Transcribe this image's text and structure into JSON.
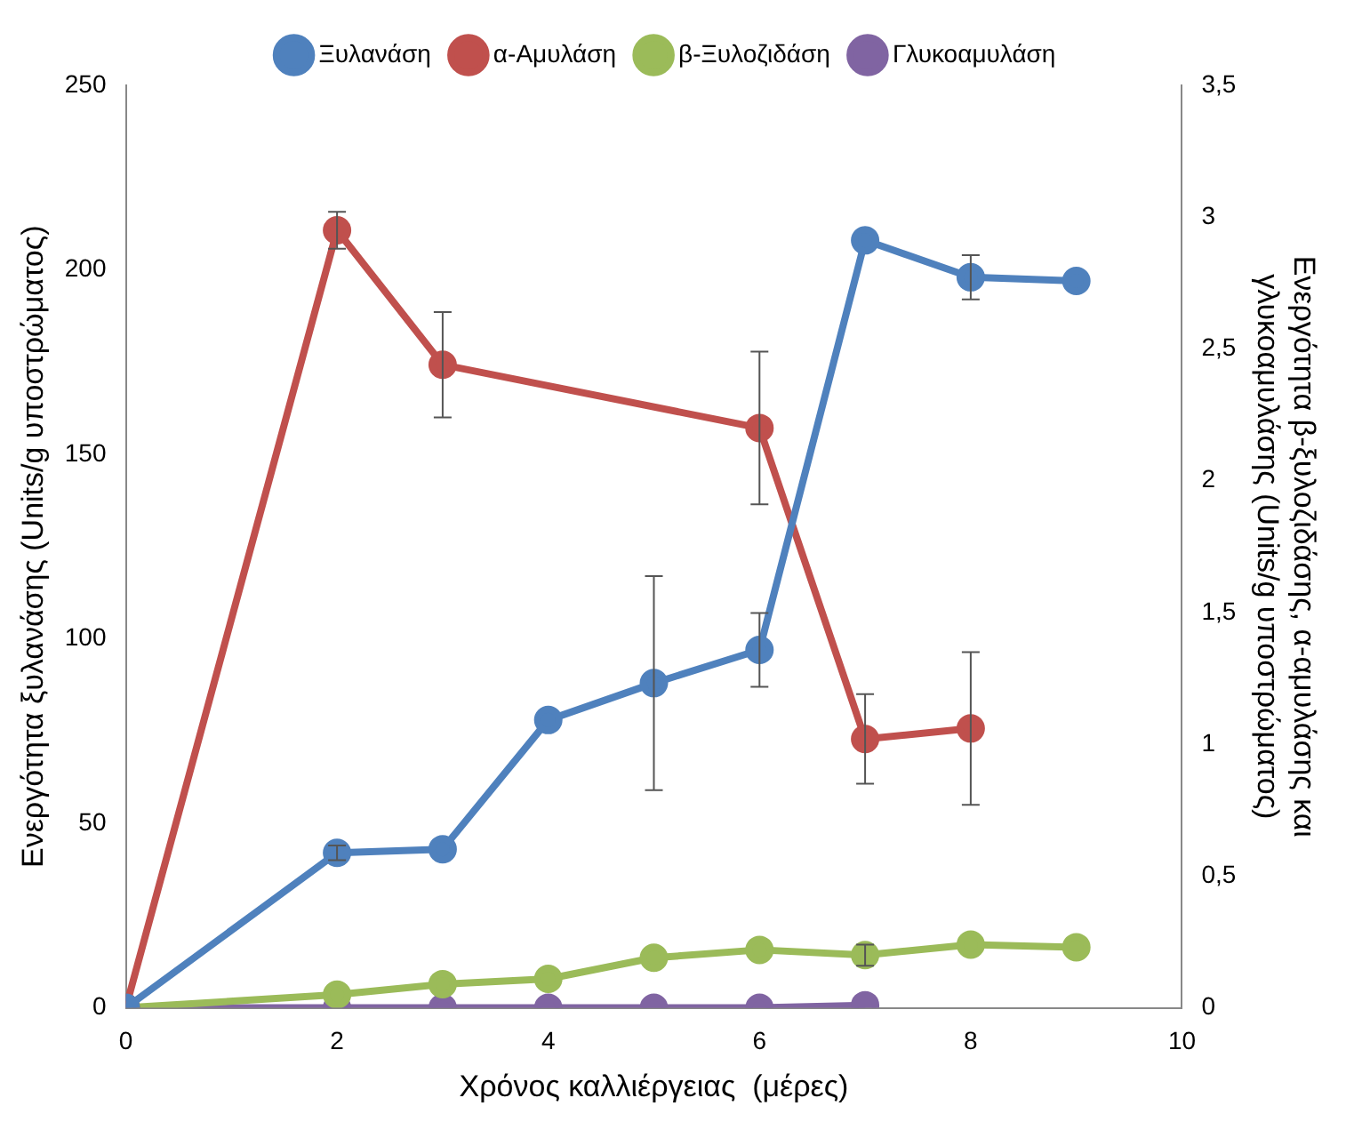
{
  "chart_data": {
    "type": "line",
    "xlabel": "Χρόνος καλλιέργειας  (μέρες)",
    "ylabel": "Ενεργότητα ξυλανάσης (Units/g υποστρώματος)",
    "y2label": "Ενεργότητα β-ξυλοζιδάσης, α-αμυλάσης και γλυκοαμυλάσης (Units/g υποστρώματος)",
    "xlim": [
      0,
      10
    ],
    "xticks": [
      0,
      2,
      4,
      6,
      8,
      10
    ],
    "ylim": [
      0,
      250
    ],
    "yticks": [
      0,
      50,
      100,
      150,
      200,
      250
    ],
    "y2lim": [
      0,
      3.5
    ],
    "y2ticks": [
      0,
      {
        "value": 0.5,
        "label": "0,5"
      },
      1,
      {
        "value": 1.5,
        "label": "1,5"
      },
      2,
      {
        "value": 2.5,
        "label": "2,5"
      },
      3,
      {
        "value": 3.5,
        "label": "3,5"
      }
    ],
    "grid": false,
    "legend": "top",
    "marker": "circle",
    "line_style": "solid",
    "series": [
      {
        "name": "Ξυλανάση",
        "color": "#4f81bd",
        "x": [
          0,
          2,
          3,
          4,
          5,
          6,
          7,
          8,
          9
        ],
        "values": [
          0,
          42,
          43,
          78,
          88,
          97,
          208,
          198,
          197
        ],
        "errors": [
          null,
          2,
          null,
          null,
          29,
          10,
          null,
          6,
          null
        ]
      },
      {
        "name": "α-Αμυλάση",
        "color": "#c0504d",
        "axis": "y2",
        "x": [
          0,
          2,
          3,
          6,
          7,
          8
        ],
        "values": [
          0,
          2.95,
          2.44,
          2.2,
          1.02,
          1.06
        ],
        "errors": [
          null,
          0.07,
          0.2,
          0.29,
          0.17,
          0.29
        ]
      },
      {
        "name": "β-Ξυλοζιδάση",
        "color": "#9bbb59",
        "axis": "y2",
        "x": [
          0,
          2,
          3,
          4,
          5,
          6,
          7,
          8,
          9
        ],
        "values": [
          0,
          0.05,
          0.09,
          0.11,
          0.19,
          0.22,
          0.2,
          0.24,
          0.23
        ],
        "errors": [
          null,
          null,
          null,
          null,
          null,
          null,
          0.04,
          null,
          null
        ]
      },
      {
        "name": "Γλυκοαμυλάση",
        "color": "#8064a2",
        "axis": "y2",
        "x": [
          0,
          2,
          3,
          4,
          5,
          6,
          7
        ],
        "values": [
          0,
          0,
          0,
          0,
          0,
          0,
          0.01
        ]
      }
    ]
  }
}
